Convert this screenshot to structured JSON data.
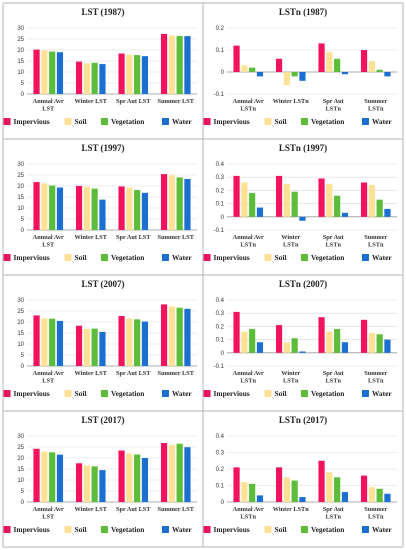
{
  "chart_data": [
    {
      "id": "lst-1987",
      "type": "bar",
      "title": "LST (1987)",
      "categories": [
        "Annual Avr|LST",
        "Winter LST",
        "Spr Aut LST",
        "Summer LST"
      ],
      "ylim": [
        0,
        30
      ],
      "yticks": [
        0,
        5,
        10,
        15,
        20,
        25,
        30
      ],
      "series": [
        {
          "name": "Impervious",
          "values": [
            20.2,
            14.7,
            18.4,
            27.3
          ]
        },
        {
          "name": "Soil",
          "values": [
            19.8,
            13.9,
            17.9,
            26.6
          ]
        },
        {
          "name": "Vegetation",
          "values": [
            19.3,
            14.2,
            17.7,
            26.4
          ]
        },
        {
          "name": "Water",
          "values": [
            19.0,
            13.6,
            17.2,
            26.3
          ]
        }
      ]
    },
    {
      "id": "lstn-1987",
      "type": "bar",
      "title": "LSTn (1987)",
      "categories": [
        "Annual Avr|LSTn",
        "Winter LSTn",
        "Spr Aut|LSTn",
        "Summer|LSTn"
      ],
      "ylim": [
        -0.1,
        0.2
      ],
      "yticks": [
        -0.1,
        0,
        0.1,
        0.2
      ],
      "series": [
        {
          "name": "Impervious",
          "values": [
            0.12,
            0.06,
            0.13,
            0.1
          ]
        },
        {
          "name": "Soil",
          "values": [
            0.03,
            -0.06,
            0.09,
            0.05
          ]
        },
        {
          "name": "Vegetation",
          "values": [
            0.02,
            -0.02,
            0.06,
            0.01
          ]
        },
        {
          "name": "Water",
          "values": [
            -0.02,
            -0.04,
            -0.01,
            -0.02
          ]
        }
      ]
    },
    {
      "id": "lst-1997",
      "type": "bar",
      "title": "LST (1997)",
      "categories": [
        "Annual Avr|LST",
        "Winter LST",
        "Spr Aut LST",
        "Summer LST"
      ],
      "ylim": [
        0,
        30
      ],
      "yticks": [
        0,
        5,
        10,
        15,
        20,
        25,
        30
      ],
      "series": [
        {
          "name": "Impervious",
          "values": [
            21.8,
            20.0,
            19.8,
            25.4
          ]
        },
        {
          "name": "Soil",
          "values": [
            21.2,
            19.6,
            19.3,
            24.9
          ]
        },
        {
          "name": "Vegetation",
          "values": [
            20.2,
            18.8,
            18.2,
            23.9
          ]
        },
        {
          "name": "Water",
          "values": [
            19.3,
            13.8,
            16.9,
            23.2
          ]
        }
      ]
    },
    {
      "id": "lstn-1997",
      "type": "bar",
      "title": "LSTn (1997)",
      "categories": [
        "Annual Avr|LSTn",
        "Winter|LSTn",
        "Spr Aut|LSTn",
        "Summer|LSTn"
      ],
      "ylim": [
        -0.1,
        0.4
      ],
      "yticks": [
        -0.1,
        0,
        0.1,
        0.2,
        0.3,
        0.4
      ],
      "series": [
        {
          "name": "Impervious",
          "values": [
            0.31,
            0.31,
            0.29,
            0.26
          ]
        },
        {
          "name": "Soil",
          "values": [
            0.26,
            0.25,
            0.25,
            0.24
          ]
        },
        {
          "name": "Vegetation",
          "values": [
            0.18,
            0.19,
            0.16,
            0.13
          ]
        },
        {
          "name": "Water",
          "values": [
            0.07,
            -0.03,
            0.03,
            0.06
          ]
        }
      ]
    },
    {
      "id": "lst-2007",
      "type": "bar",
      "title": "LST (2007)",
      "categories": [
        "Annual Avr|LST",
        "Winter LST",
        "Spr Aut LST",
        "Summer LST"
      ],
      "ylim": [
        0,
        30
      ],
      "yticks": [
        0,
        5,
        10,
        15,
        20,
        25,
        30
      ],
      "series": [
        {
          "name": "Impervious",
          "values": [
            23.0,
            18.3,
            22.7,
            28.0
          ]
        },
        {
          "name": "Soil",
          "values": [
            21.6,
            16.9,
            21.6,
            27.0
          ]
        },
        {
          "name": "Vegetation",
          "values": [
            21.5,
            17.0,
            21.2,
            26.5
          ]
        },
        {
          "name": "Water",
          "values": [
            20.5,
            15.5,
            20.2,
            26.0
          ]
        }
      ]
    },
    {
      "id": "lstn-2007",
      "type": "bar",
      "title": "LSTn (2007)",
      "categories": [
        "Annual Avr|LSTn",
        "Winter|LSTn",
        "Spr Aut|LSTn",
        "Summer|LSTn"
      ],
      "ylim": [
        -0.1,
        0.4
      ],
      "yticks": [
        -0.1,
        0,
        0.1,
        0.2,
        0.3,
        0.4
      ],
      "series": [
        {
          "name": "Impervious",
          "values": [
            0.31,
            0.21,
            0.27,
            0.25
          ]
        },
        {
          "name": "Soil",
          "values": [
            0.16,
            0.08,
            0.16,
            0.15
          ]
        },
        {
          "name": "Vegetation",
          "values": [
            0.18,
            0.11,
            0.18,
            0.14
          ]
        },
        {
          "name": "Water",
          "values": [
            0.08,
            0.01,
            0.08,
            0.1
          ]
        }
      ]
    },
    {
      "id": "lst-2017",
      "type": "bar",
      "title": "LST (2017)",
      "categories": [
        "Annual Avr|LST",
        "Winter LST",
        "Spr Aut LST",
        "Summer LST"
      ],
      "ylim": [
        0,
        30
      ],
      "yticks": [
        0,
        5,
        10,
        15,
        20,
        25,
        30
      ],
      "series": [
        {
          "name": "Impervious",
          "values": [
            24.2,
            17.6,
            23.4,
            26.8
          ]
        },
        {
          "name": "Soil",
          "values": [
            23.0,
            16.6,
            22.1,
            26.0
          ]
        },
        {
          "name": "Vegetation",
          "values": [
            22.6,
            16.2,
            21.6,
            26.5
          ]
        },
        {
          "name": "Water",
          "values": [
            21.5,
            14.5,
            20.0,
            24.9
          ]
        }
      ]
    },
    {
      "id": "lstn-2017",
      "type": "bar",
      "title": "LSTn (2017)",
      "categories": [
        "Annual Avr|LSTn",
        "Winter LSTn",
        "Spr Aut|LSTn",
        "Summer|LSTn"
      ],
      "ylim": [
        0,
        0.4
      ],
      "yticks": [
        0,
        0.1,
        0.2,
        0.3,
        0.4
      ],
      "series": [
        {
          "name": "Impervious",
          "values": [
            0.21,
            0.21,
            0.25,
            0.16
          ]
        },
        {
          "name": "Soil",
          "values": [
            0.12,
            0.15,
            0.18,
            0.09
          ]
        },
        {
          "name": "Vegetation",
          "values": [
            0.11,
            0.13,
            0.15,
            0.08
          ]
        },
        {
          "name": "Water",
          "values": [
            0.04,
            0.03,
            0.06,
            0.05
          ]
        }
      ]
    }
  ],
  "legend": {
    "placement": "bottom"
  },
  "colors": {
    "Impervious": "#f2135e",
    "Soil": "#fde295",
    "Vegetation": "#5cbd3b",
    "Water": "#1a6fd1",
    "panel_border": "#b4b4b4",
    "gridline": "#d9d9d9"
  }
}
